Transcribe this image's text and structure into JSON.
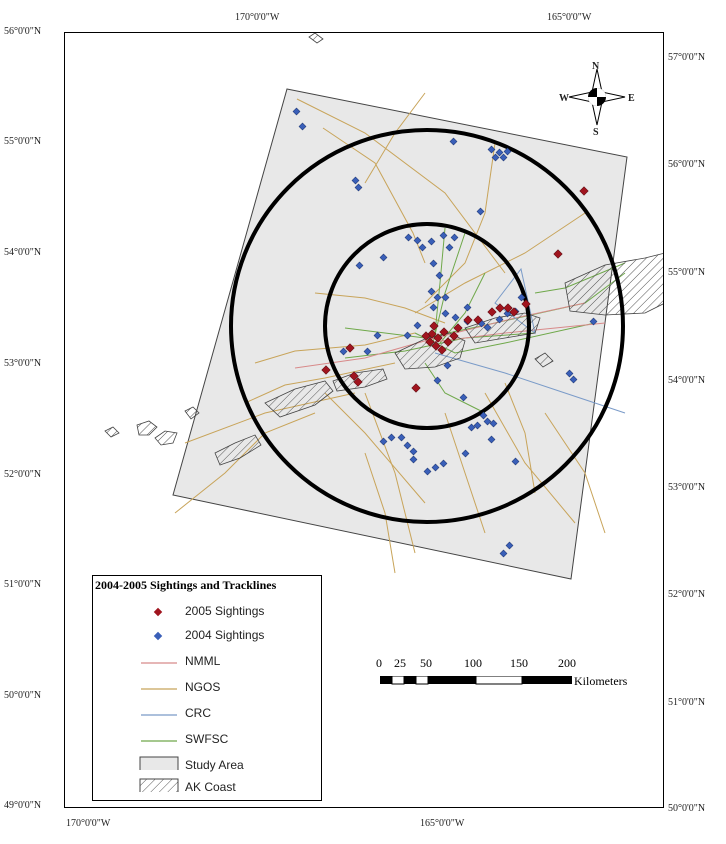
{
  "axes": {
    "top_lon": [
      "170°0'0\"W",
      "165°0'0\"W"
    ],
    "bottom_lon": [
      "170°0'0\"W",
      "165°0'0\"W"
    ],
    "left_lat": [
      "56°0'0\"N",
      "55°0'0\"N",
      "54°0'0\"N",
      "53°0'0\"N",
      "52°0'0\"N",
      "51°0'0\"N",
      "50°0'0\"N",
      "49°0'0\"N"
    ],
    "right_lat": [
      "57°0'0\"N",
      "56°0'0\"N",
      "55°0'0\"N",
      "54°0'0\"N",
      "53°0'0\"N",
      "52°0'0\"N",
      "51°0'0\"N",
      "50°0'0\"N"
    ]
  },
  "compass": {
    "n": "N",
    "s": "S",
    "e": "E",
    "w": "W"
  },
  "legend": {
    "title": "2004-2005 Sightings and Tracklines",
    "items": [
      {
        "label": "2005 Sightings",
        "kind": "diamond",
        "color": "#a0141e"
      },
      {
        "label": "2004 Sightings",
        "kind": "diamond",
        "color": "#3a5fb8"
      },
      {
        "label": "NMML",
        "kind": "line",
        "color": "#d88a8a"
      },
      {
        "label": "NGOS",
        "kind": "line",
        "color": "#c8a45a"
      },
      {
        "label": "CRC",
        "kind": "line",
        "color": "#7a9bc8"
      },
      {
        "label": "SWFSC",
        "kind": "line",
        "color": "#6fa84a"
      },
      {
        "label": "Study Area",
        "kind": "box",
        "color": "#e8e8e8"
      },
      {
        "label": "AK Coast",
        "kind": "hatch",
        "color": "#ffffff"
      }
    ]
  },
  "scale_bar": {
    "ticks": [
      "0",
      "25",
      "50",
      "100",
      "150",
      "200"
    ],
    "unit": "Kilometers"
  },
  "colors": {
    "study_area_fill": "#e8e8e8",
    "ring": "#000000",
    "sighting_2005": "#a0141e",
    "sighting_2004": "#3a5fb8"
  }
}
